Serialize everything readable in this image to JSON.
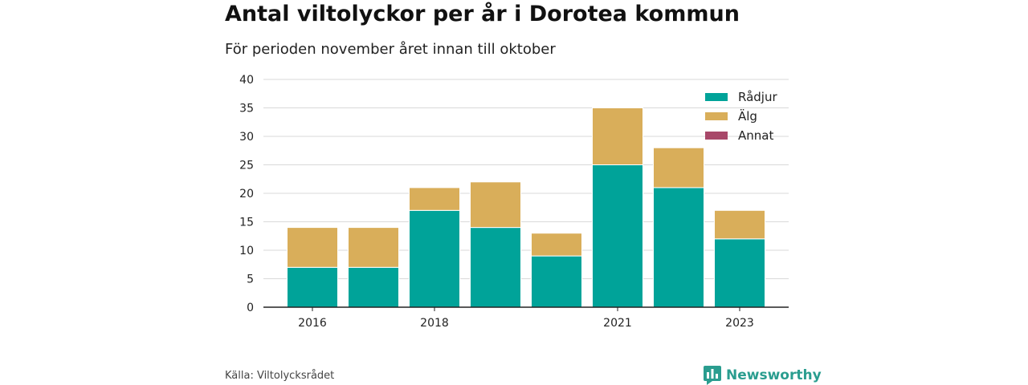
{
  "title": "Antal viltolyckor per år i Dorotea kommun",
  "subtitle": "För perioden november året innan till oktober",
  "source": "Källa: Viltolycksrådet",
  "brand": "Newsworthy",
  "colors": {
    "radjur": "#00a399",
    "alg": "#d9ae5a",
    "annat": "#a84869",
    "brand": "#2a9d8f",
    "grid": "#d9d9d9",
    "axis": "#222222"
  },
  "chart_data": {
    "type": "bar",
    "stacked": true,
    "x": [
      2016,
      2017,
      2018,
      2019,
      2020,
      2021,
      2022,
      2023
    ],
    "x_tick_labels": [
      {
        "x": 2016,
        "label": "2016"
      },
      {
        "x": 2018,
        "label": "2018"
      },
      {
        "x": 2021,
        "label": "2021"
      },
      {
        "x": 2023,
        "label": "2023"
      }
    ],
    "series": [
      {
        "name": "Rådjur",
        "color": "#00a399",
        "values": [
          7,
          7,
          17,
          14,
          9,
          25,
          21,
          12
        ]
      },
      {
        "name": "Älg",
        "color": "#d9ae5a",
        "values": [
          7,
          7,
          4,
          8,
          4,
          10,
          7,
          5
        ]
      },
      {
        "name": "Annat",
        "color": "#a84869",
        "values": [
          0,
          0,
          0,
          0,
          0,
          0,
          0,
          0
        ]
      }
    ],
    "ylim": [
      0,
      40
    ],
    "yticks": [
      0,
      5,
      10,
      15,
      20,
      25,
      30,
      35,
      40
    ],
    "grid": true,
    "legend_position": "top-right",
    "xlabel": "",
    "ylabel": ""
  }
}
